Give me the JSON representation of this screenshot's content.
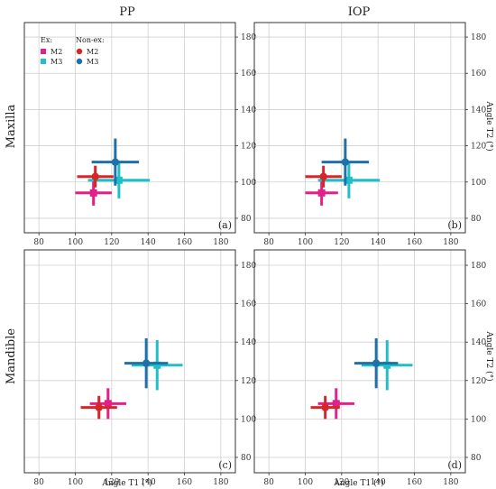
{
  "figure": {
    "column_titles": [
      "PP",
      "IOP"
    ],
    "row_labels": [
      "Maxilla",
      "Mandible"
    ],
    "xlabel": "Angle T1 (°)",
    "ylabel": "Angle T2 (°)",
    "legend": {
      "ex_title": "Ex:",
      "nonex_title": "Non-ex:",
      "items": [
        {
          "group": "ex",
          "label": "M2",
          "color": "#e0218a",
          "marker": "square"
        },
        {
          "group": "ex",
          "label": "M3",
          "color": "#1fbfc9",
          "marker": "square"
        },
        {
          "group": "nonex",
          "label": "M2",
          "color": "#d62728",
          "marker": "circle"
        },
        {
          "group": "nonex",
          "label": "M3",
          "color": "#1f6fa8",
          "marker": "circle"
        }
      ]
    }
  },
  "chart_data": [
    {
      "type": "scatter",
      "panel": "(a)",
      "xlim": [
        72,
        188
      ],
      "ylim": [
        72,
        188
      ],
      "xticks": [
        80,
        100,
        120,
        140,
        160,
        180
      ],
      "yticks": [
        80,
        100,
        120,
        140,
        160,
        180
      ],
      "grid": true,
      "series": [
        {
          "name": "Ex: M2",
          "color": "#e0218a",
          "marker": "square",
          "x": 110,
          "y": 94,
          "xerr": 10,
          "yerr": 7
        },
        {
          "name": "Ex: M3",
          "color": "#1fbfc9",
          "marker": "square",
          "x": 124,
          "y": 101,
          "xerr": 17,
          "yerr": 10
        },
        {
          "name": "Non-ex: M2",
          "color": "#d62728",
          "marker": "circle",
          "x": 111,
          "y": 103,
          "xerr": 10,
          "yerr": 6
        },
        {
          "name": "Non-ex: M3",
          "color": "#1f6fa8",
          "marker": "circle",
          "x": 122,
          "y": 111,
          "xerr": 13,
          "yerr": 13
        }
      ]
    },
    {
      "type": "scatter",
      "panel": "(b)",
      "xlim": [
        72,
        188
      ],
      "ylim": [
        72,
        188
      ],
      "xticks": [
        80,
        100,
        120,
        140,
        160,
        180
      ],
      "yticks": [
        80,
        100,
        120,
        140,
        160,
        180
      ],
      "grid": true,
      "series": [
        {
          "name": "Ex: M2",
          "color": "#e0218a",
          "marker": "square",
          "x": 109,
          "y": 94,
          "xerr": 9,
          "yerr": 7
        },
        {
          "name": "Ex: M3",
          "color": "#1fbfc9",
          "marker": "square",
          "x": 124,
          "y": 101,
          "xerr": 17,
          "yerr": 10
        },
        {
          "name": "Non-ex: M2",
          "color": "#d62728",
          "marker": "circle",
          "x": 110,
          "y": 103,
          "xerr": 10,
          "yerr": 6
        },
        {
          "name": "Non-ex: M3",
          "color": "#1f6fa8",
          "marker": "circle",
          "x": 122,
          "y": 111,
          "xerr": 13,
          "yerr": 13
        }
      ]
    },
    {
      "type": "scatter",
      "panel": "(c)",
      "xlim": [
        72,
        188
      ],
      "ylim": [
        72,
        188
      ],
      "xticks": [
        80,
        100,
        120,
        140,
        160,
        180
      ],
      "yticks": [
        80,
        100,
        120,
        140,
        160,
        180
      ],
      "grid": true,
      "series": [
        {
          "name": "Ex: M2",
          "color": "#e0218a",
          "marker": "square",
          "x": 118,
          "y": 108,
          "xerr": 10,
          "yerr": 8
        },
        {
          "name": "Ex: M3",
          "color": "#1fbfc9",
          "marker": "square",
          "x": 145,
          "y": 128,
          "xerr": 14,
          "yerr": 13
        },
        {
          "name": "Non-ex: M2",
          "color": "#d62728",
          "marker": "circle",
          "x": 113,
          "y": 106,
          "xerr": 10,
          "yerr": 6
        },
        {
          "name": "Non-ex: M3",
          "color": "#1f6fa8",
          "marker": "circle",
          "x": 139,
          "y": 129,
          "xerr": 12,
          "yerr": 13
        }
      ]
    },
    {
      "type": "scatter",
      "panel": "(d)",
      "xlim": [
        72,
        188
      ],
      "ylim": [
        72,
        188
      ],
      "xticks": [
        80,
        100,
        120,
        140,
        160,
        180
      ],
      "yticks": [
        80,
        100,
        120,
        140,
        160,
        180
      ],
      "grid": true,
      "series": [
        {
          "name": "Ex: M2",
          "color": "#e0218a",
          "marker": "square",
          "x": 117,
          "y": 108,
          "xerr": 10,
          "yerr": 8
        },
        {
          "name": "Ex: M3",
          "color": "#1fbfc9",
          "marker": "square",
          "x": 145,
          "y": 128,
          "xerr": 14,
          "yerr": 13
        },
        {
          "name": "Non-ex: M2",
          "color": "#d62728",
          "marker": "circle",
          "x": 111,
          "y": 106,
          "xerr": 8,
          "yerr": 6
        },
        {
          "name": "Non-ex: M3",
          "color": "#1f6fa8",
          "marker": "circle",
          "x": 139,
          "y": 129,
          "xerr": 12,
          "yerr": 13
        }
      ]
    }
  ]
}
